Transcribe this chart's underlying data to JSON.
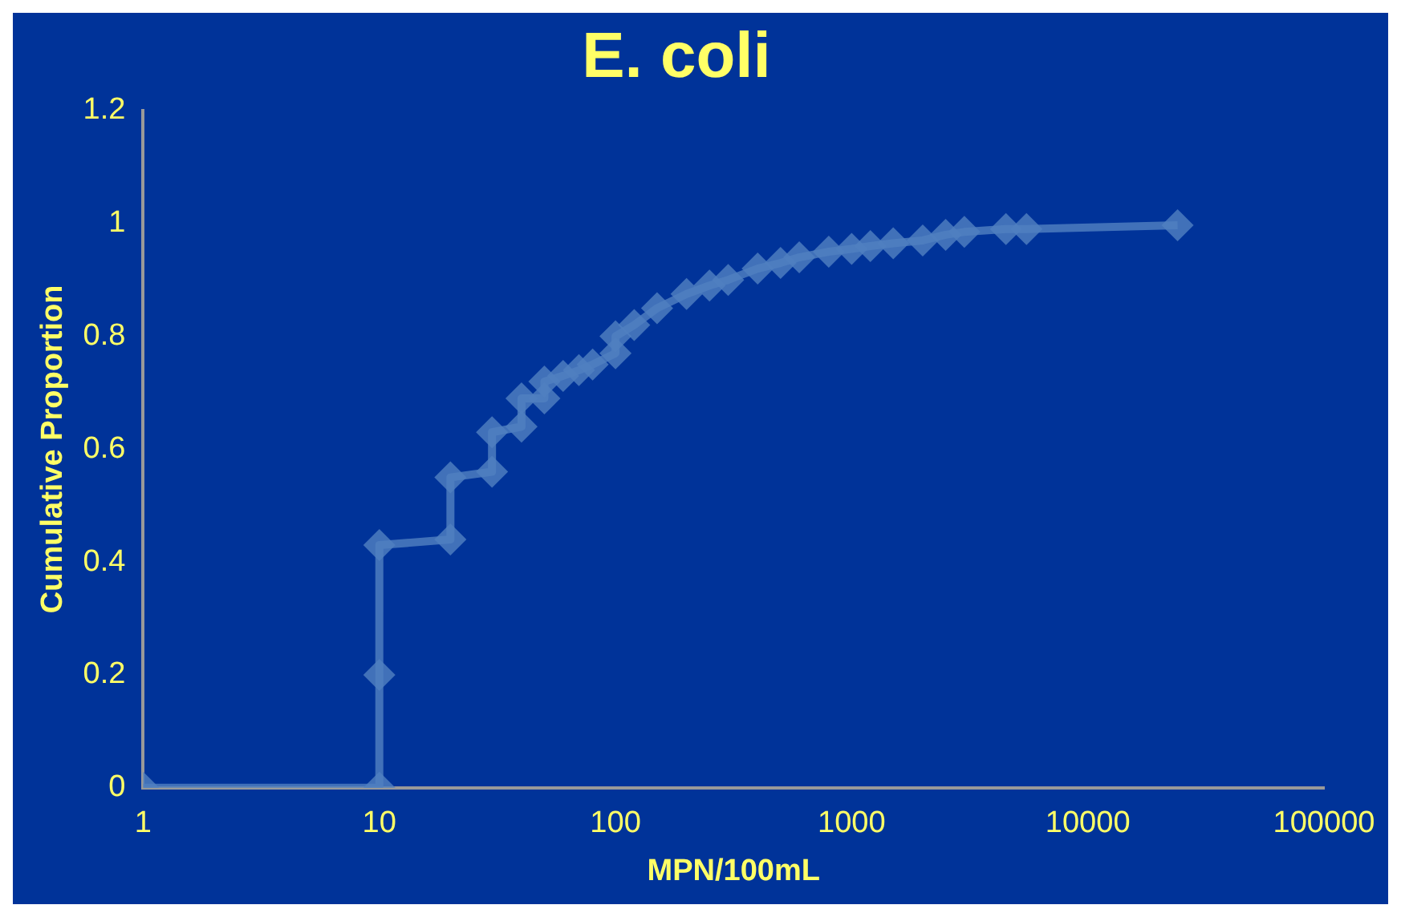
{
  "chart_data": {
    "type": "line",
    "title": "E. coli",
    "xlabel": "MPN/100mL",
    "ylabel": "Cumulative Proportion",
    "log": "x",
    "xlim": [
      1,
      100000
    ],
    "xticks": [
      1,
      10,
      100,
      1000,
      10000,
      100000
    ],
    "ylim": [
      0,
      1.2
    ],
    "yticks": [
      0,
      0.2,
      0.4,
      0.6,
      0.8,
      1,
      1.2
    ],
    "grid": false,
    "legend": false,
    "marker": "diamond",
    "line_style": "solid",
    "series": [
      {
        "color": "#5080c0",
        "x": [
          1,
          10,
          10,
          10,
          20,
          20,
          30,
          30,
          40,
          40,
          50,
          50,
          60,
          70,
          80,
          100,
          100,
          120,
          150,
          200,
          250,
          300,
          400,
          500,
          600,
          800,
          1000,
          1200,
          1500,
          2000,
          2500,
          3000,
          4500,
          5500,
          24000
        ],
        "values": [
          0,
          0,
          0.2,
          0.43,
          0.44,
          0.55,
          0.56,
          0.63,
          0.64,
          0.69,
          0.69,
          0.72,
          0.73,
          0.74,
          0.75,
          0.77,
          0.8,
          0.82,
          0.85,
          0.875,
          0.89,
          0.9,
          0.92,
          0.93,
          0.94,
          0.95,
          0.955,
          0.96,
          0.965,
          0.97,
          0.98,
          0.985,
          0.99,
          0.99,
          0.997
        ]
      }
    ]
  }
}
